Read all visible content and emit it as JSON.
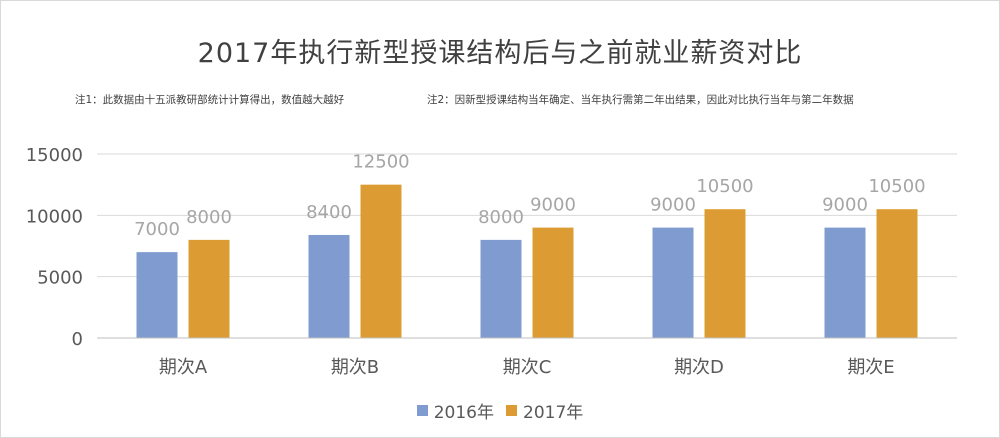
{
  "chart_data": {
    "type": "bar",
    "title": "2017年执行新型授课结构后与之前就业薪资对比",
    "notes": [
      "注1：此数据由十五派教研部统计计算得出，数值越大越好",
      "注2：因新型授课结构当年确定、当年执行需第二年出结果，因此对比执行当年与第二年数据"
    ],
    "categories": [
      "期次A",
      "期次B",
      "期次C",
      "期次D",
      "期次E"
    ],
    "series": [
      {
        "name": "2016年",
        "color": "#7f9bd0",
        "values": [
          7000,
          8400,
          8000,
          9000,
          9000
        ]
      },
      {
        "name": "2017年",
        "color": "#dd9c33",
        "values": [
          8000,
          12500,
          9000,
          10500,
          10500
        ]
      }
    ],
    "data_labels": {
      "2016年": [
        "7000",
        "8400",
        "8000",
        "9000",
        "9000"
      ],
      "2017年": [
        "8000",
        "12500",
        "9000",
        "10500",
        "10500"
      ]
    },
    "yticks": [
      0,
      5000,
      10000,
      15000
    ],
    "ylim": [
      0,
      15000
    ],
    "grid": true,
    "legend": "bottom"
  }
}
